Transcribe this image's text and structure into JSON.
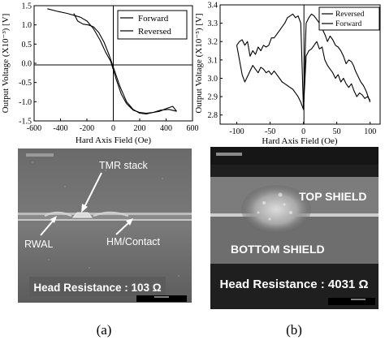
{
  "chart_data": [
    {
      "type": "line",
      "xlabel": "Hard Axis Field (Oe)",
      "ylabel": "Output Voltage (X10⁻³) [V]",
      "xlim": [
        -600,
        600
      ],
      "ylim": [
        -1.5,
        1.5
      ],
      "xticks": [
        "-600",
        "-400",
        "-200",
        "0",
        "200",
        "400",
        "600"
      ],
      "yticks": [
        "1.5",
        "1.0",
        "0.5",
        "0.0",
        "-0.5",
        "-1.0",
        "-1.5"
      ],
      "legend_position": "top-right",
      "series": [
        {
          "name": "Forward",
          "x": [
            -500,
            -420,
            -350,
            -300,
            -250,
            -200,
            -150,
            -100,
            -60,
            -20,
            20,
            60,
            100,
            150,
            200,
            250,
            300,
            350,
            400,
            450,
            480
          ],
          "y": [
            1.42,
            1.35,
            1.3,
            1.25,
            1.2,
            1.1,
            0.9,
            0.6,
            0.3,
            0.05,
            -0.4,
            -0.8,
            -1.05,
            -1.22,
            -1.28,
            -1.3,
            -1.28,
            -1.25,
            -1.18,
            -1.12,
            -1.25
          ]
        },
        {
          "name": "Reversed",
          "x": [
            480,
            420,
            360,
            300,
            250,
            200,
            150,
            100,
            50,
            0,
            -30,
            -70,
            -110,
            -150,
            -190,
            -230,
            -270,
            -300
          ],
          "y": [
            -1.25,
            -1.2,
            -1.22,
            -1.28,
            -1.32,
            -1.3,
            -1.2,
            -1.0,
            -0.6,
            -0.1,
            0.2,
            0.55,
            0.8,
            0.95,
            1.0,
            1.02,
            1.1,
            1.3
          ]
        }
      ]
    },
    {
      "type": "line",
      "xlabel": "Hard Axis Field (Oe)",
      "ylabel": "Output Voltage (X10⁻⁵) [V]",
      "xlim": [
        -125,
        115
      ],
      "ylim": [
        2.75,
        3.4
      ],
      "xticks": [
        "-100",
        "-50",
        "0",
        "50",
        "100"
      ],
      "yticks": [
        "3.4",
        "3.3",
        "3.2",
        "3.1",
        "3.0",
        "2.9",
        "2.8"
      ],
      "legend_position": "top-right",
      "series": [
        {
          "name": "Reversed",
          "x": [
            100,
            97,
            94,
            90,
            86,
            82,
            78,
            75,
            72,
            68,
            64,
            60,
            56,
            52,
            48,
            44,
            40,
            36,
            32,
            28,
            24,
            20,
            16,
            12,
            8,
            4,
            2,
            0,
            -4,
            -8,
            -12,
            -16,
            -20,
            -24,
            -28,
            -32,
            -36,
            -40,
            -44,
            -48,
            -52,
            -56,
            -60,
            -64,
            -68,
            -72,
            -76,
            -80,
            -84,
            -88,
            -92,
            -96,
            -100
          ],
          "y": [
            2.87,
            2.9,
            2.93,
            2.96,
            2.98,
            3.01,
            3.04,
            3.07,
            3.09,
            3.1,
            3.08,
            3.12,
            3.15,
            3.17,
            3.18,
            3.21,
            3.23,
            3.2,
            3.24,
            3.27,
            3.3,
            3.32,
            3.34,
            3.35,
            3.33,
            3.3,
            3.08,
            2.83,
            3.3,
            3.34,
            3.33,
            3.35,
            3.34,
            3.33,
            3.3,
            3.28,
            3.26,
            3.24,
            3.22,
            3.22,
            3.18,
            3.17,
            3.18,
            3.15,
            3.17,
            3.13,
            3.15,
            3.12,
            3.2,
            3.18,
            3.21,
            3.2,
            3.18
          ]
        },
        {
          "name": "Forward",
          "x": [
            -100,
            -96,
            -92,
            -88,
            -84,
            -80,
            -76,
            -72,
            -68,
            -64,
            -60,
            -56,
            -52,
            -48,
            -44,
            -40,
            -36,
            -32,
            -28,
            -24,
            -20,
            -16,
            -12,
            -8,
            -4,
            0,
            4,
            8,
            12,
            16,
            20,
            24,
            28,
            32,
            36,
            40,
            44,
            48,
            52,
            56,
            60,
            64,
            68,
            72,
            76,
            80,
            84,
            88,
            92,
            96,
            100
          ],
          "y": [
            3.18,
            3.1,
            3.02,
            2.98,
            3.01,
            3.04,
            3.07,
            3.05,
            3.03,
            3.06,
            3.05,
            3.03,
            3.04,
            3.02,
            3.04,
            3.02,
            3.0,
            2.98,
            2.97,
            2.96,
            2.95,
            2.94,
            2.92,
            2.9,
            2.87,
            2.83,
            3.12,
            3.15,
            3.16,
            3.18,
            3.2,
            3.16,
            3.17,
            3.1,
            3.07,
            3.05,
            3.03,
            3.0,
            3.02,
            2.98,
            3.0,
            2.97,
            2.95,
            2.97,
            2.93,
            2.9,
            2.92,
            2.91,
            2.89,
            2.9,
            2.88
          ]
        }
      ]
    }
  ],
  "sem_a": {
    "labels": {
      "stack": "TMR  stack",
      "rwal": "RWAL",
      "contact": "HM/Contact"
    },
    "resistance": "Head Resistance : 103 Ω"
  },
  "sem_b": {
    "labels": {
      "top": "TOP SHIELD",
      "bottom": "BOTTOM SHIELD"
    },
    "resistance": "Head Resistance : 4031 Ω"
  },
  "captions": [
    "(a)",
    "(b)"
  ]
}
